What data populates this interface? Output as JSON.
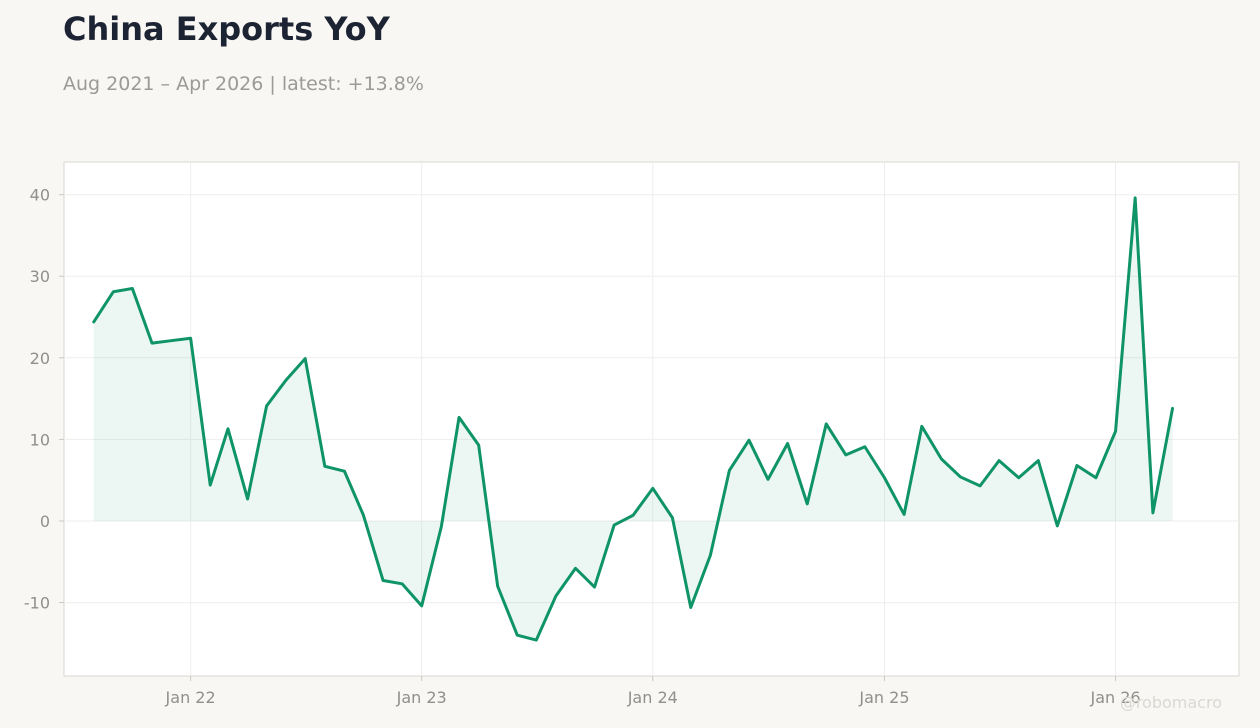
{
  "header": {
    "title": "China Exports YoY",
    "subtitle": "Aug 2021 – Apr 2026 | latest: +13.8%"
  },
  "watermark": "@robomacro",
  "colors": {
    "line": "#0f9467",
    "fill": "#0f9467",
    "background": "#f8f7f4",
    "plot_background": "#ffffff",
    "grid": "#eeeeec",
    "axis_text": "#8f8f8b",
    "title": "#1c2333"
  },
  "chart_data": {
    "type": "area",
    "title": "China Exports YoY",
    "subtitle": "Aug 2021 – Apr 2026 | latest: +13.8%",
    "xlabel": "",
    "ylabel": "",
    "ylim": [
      -19,
      44
    ],
    "xlim": [
      "2021-06-15",
      "2026-07-15"
    ],
    "grid": true,
    "legend": "none",
    "y_ticks": [
      -10,
      0,
      10,
      20,
      30,
      40
    ],
    "y_tick_labels": [
      "-10",
      "0",
      "10",
      "20",
      "30",
      "40"
    ],
    "x_ticks": [
      "2022-01-01",
      "2023-01-01",
      "2024-01-01",
      "2025-01-01",
      "2026-01-01"
    ],
    "x_tick_labels": [
      "Jan 22",
      "Jan 23",
      "Jan 24",
      "Jan 25",
      "Jan 26"
    ],
    "series": [
      {
        "x": [
          "2021-08-01",
          "2021-09-01",
          "2021-10-01",
          "2021-11-01",
          "2021-12-01",
          "2022-01-01",
          "2022-02-01",
          "2022-03-01",
          "2022-04-01",
          "2022-05-01",
          "2022-06-01",
          "2022-07-01",
          "2022-08-01",
          "2022-09-01",
          "2022-10-01",
          "2022-11-01",
          "2022-12-01",
          "2023-01-01",
          "2023-02-01",
          "2023-03-01",
          "2023-04-01",
          "2023-05-01",
          "2023-06-01",
          "2023-07-01",
          "2023-08-01",
          "2023-09-01",
          "2023-10-01",
          "2023-11-01",
          "2023-12-01",
          "2024-01-01",
          "2024-02-01",
          "2024-03-01",
          "2024-04-01",
          "2024-05-01",
          "2024-06-01",
          "2024-07-01",
          "2024-08-01",
          "2024-09-01",
          "2024-10-01",
          "2024-11-01",
          "2024-12-01",
          "2025-01-01",
          "2025-02-01",
          "2025-03-01",
          "2025-04-01",
          "2025-05-01",
          "2025-06-01",
          "2025-07-01",
          "2025-08-01",
          "2025-09-01",
          "2025-10-01",
          "2025-11-01",
          "2025-12-01",
          "2026-01-01",
          "2026-02-01",
          "2026-03-01",
          "2026-04-01"
        ],
        "values": [
          24.4,
          28.1,
          28.5,
          21.8,
          22.1,
          22.4,
          4.4,
          11.3,
          2.7,
          14.1,
          17.3,
          19.9,
          6.7,
          6.1,
          0.7,
          -7.3,
          -7.7,
          -10.4,
          -0.7,
          12.7,
          9.3,
          -8.0,
          -14.0,
          -14.6,
          -9.2,
          -5.8,
          -8.1,
          -0.5,
          0.7,
          4.0,
          0.4,
          -10.6,
          -4.2,
          6.2,
          9.9,
          5.1,
          9.5,
          2.1,
          11.9,
          8.1,
          9.1,
          5.3,
          0.8,
          11.6,
          7.6,
          5.4,
          4.3,
          7.4,
          5.3,
          7.4,
          -0.6,
          6.8,
          5.3,
          11.0,
          39.6,
          1.0,
          13.8
        ]
      }
    ]
  }
}
